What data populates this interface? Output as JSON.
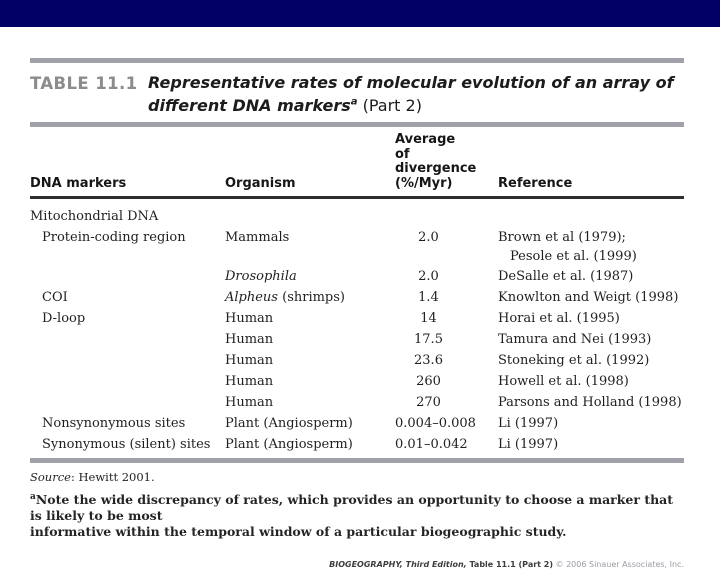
{
  "slide": {
    "colors": {
      "top_bar": "#000066",
      "rule_gray": "#a1a1a9",
      "header_rule": "#2e2e2e",
      "table_label_gray": "#8c8c8c"
    }
  },
  "figure": {
    "label": "TABLE 11.1",
    "title_line1": "Representative rates of molecular evolution of an array of",
    "title_line2": "different DNA markers",
    "title_note_marker": "a",
    "title_part": " (Part 2)",
    "headers": {
      "dna_markers": "DNA markers",
      "organism": "Organism",
      "divergence": "Average of\ndivergence\n(%/Myr)",
      "reference": "Reference"
    },
    "rows": [
      {
        "marker": "Mitochondrial DNA",
        "organism_italic": "",
        "organism": "",
        "value": "",
        "reference": ""
      },
      {
        "marker": "Protein-coding region",
        "organism_italic": "",
        "organism": "Mammals",
        "value": "2.0",
        "reference": "Brown et al (1979);",
        "reference_line2": "Pesole et al. (1999)"
      },
      {
        "marker": "",
        "organism_italic": "Drosophila",
        "organism": "",
        "value": "2.0",
        "reference": "DeSalle et al. (1987)"
      },
      {
        "marker": "COI",
        "organism_italic": "Alpheus",
        "organism": " (shrimps)",
        "value": "1.4",
        "reference": "Knowlton and Weigt (1998)"
      },
      {
        "marker": "D-loop",
        "organism_italic": "",
        "organism": "Human",
        "value": "14",
        "reference": "Horai et al. (1995)"
      },
      {
        "marker": "",
        "organism_italic": "",
        "organism": "Human",
        "value": "17.5",
        "reference": "Tamura and Nei (1993)"
      },
      {
        "marker": "",
        "organism_italic": "",
        "organism": "Human",
        "value": "23.6",
        "reference": "Stoneking et al. (1992)"
      },
      {
        "marker": "",
        "organism_italic": "",
        "organism": "Human",
        "value": "260",
        "reference": "Howell et al. (1998)"
      },
      {
        "marker": "",
        "organism_italic": "",
        "organism": "Human",
        "value": "270",
        "reference": "Parsons and Holland (1998)"
      },
      {
        "marker": "Nonsynonymous sites",
        "organism_italic": "",
        "organism": "Plant (Angiosperm)",
        "value": "0.004–0.008",
        "reference": "Li (1997)"
      },
      {
        "marker": "Synonymous (silent) sites",
        "organism_italic": "",
        "organism": "Plant (Angiosperm)",
        "value": "0.01–0.042",
        "reference": "Li (1997)"
      }
    ],
    "source_label": "Source",
    "source_text": ": Hewitt 2001.",
    "footnote_marker": "a",
    "footnote_text": "Note the wide discrepancy of rates, which provides an opportunity to choose a marker that is likely to be most\ninformative within the temporal window of a particular biogeographic study.",
    "credit": {
      "book": "BIOGEOGRAPHY, Third Edition,",
      "table_ref": " Table 11.1 (Part 2)",
      "copyright": "  © 2006 Sinauer Associates, Inc."
    }
  }
}
